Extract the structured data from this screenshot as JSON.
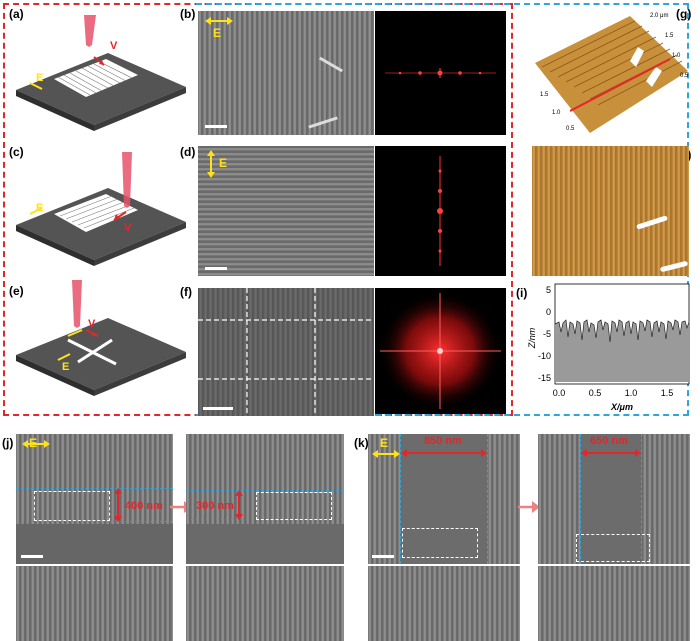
{
  "panels": {
    "a": "(a)",
    "b": "(b)",
    "c": "(c)",
    "d": "(d)",
    "e": "(e)",
    "f": "(f)",
    "g": "(g)",
    "h": "(h)",
    "i": "(i)",
    "j": "(j)",
    "k": "(k)"
  },
  "symbols": {
    "E": "E",
    "V": "V"
  },
  "afm3d": {
    "t_2um": "2.0 μm",
    "t_15a": "1.5",
    "t_10a": "1.0",
    "t_05a": "0.5",
    "t_15b": "1.5",
    "t_10b": "1.0",
    "t_05b": "0.5"
  },
  "profile": {
    "ylabel": "Z/nm",
    "xlabel": "X/μm",
    "yticks": [
      "5",
      "0",
      "-5",
      "-10",
      "-15"
    ],
    "xticks": [
      "0.0",
      "0.5",
      "1.0",
      "1.5"
    ]
  },
  "measurements": {
    "j_before": "400 nm",
    "j_after": "300 nm",
    "k_before": "850 nm",
    "k_after": "650 nm"
  },
  "colors": {
    "red_frame": "#e3262b",
    "blue_frame": "#2fa5dd",
    "arrow_yellow": "#ffe21a",
    "afm_gold": "#c8903a"
  }
}
